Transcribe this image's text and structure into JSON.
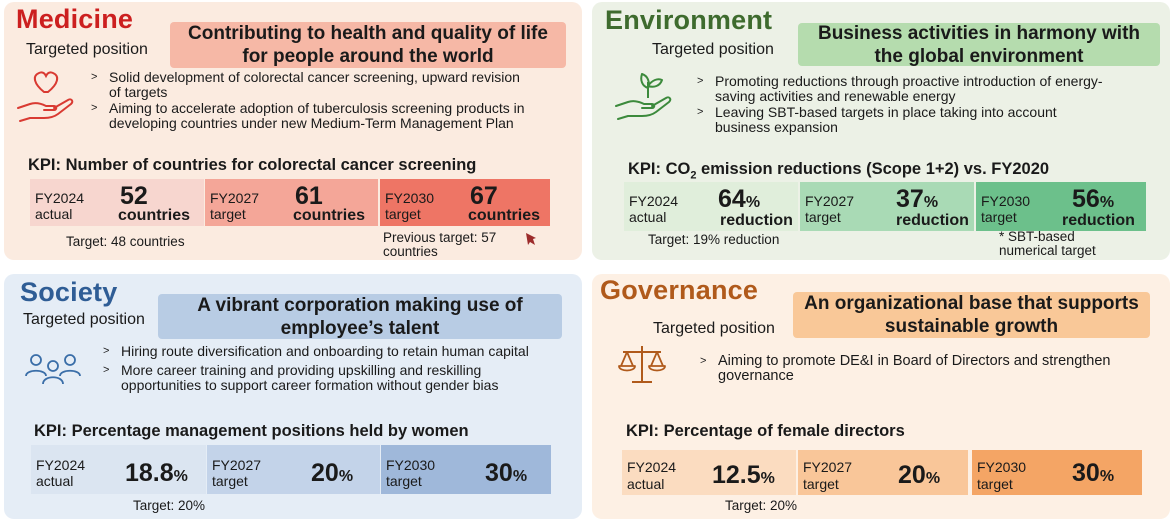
{
  "medicine": {
    "title": "Medicine",
    "targeted_position": "Targeted position",
    "banner": "Contributing to health and quality of life for people around the world",
    "bullets": [
      "Solid development of colorectal cancer screening, upward revision of targets",
      "Aiming to accelerate adoption of tuberculosis screening products in developing countries under new Medium-Term Management Plan"
    ],
    "kpi": "KPI: Number of countries for colorectal cancer screening",
    "boxes": [
      {
        "year": "FY2024",
        "label": "actual",
        "value": "52",
        "unit": "countries"
      },
      {
        "year": "FY2027",
        "label": "target",
        "value": "61",
        "unit": "countries"
      },
      {
        "year": "FY2030",
        "label": "target",
        "value": "67",
        "unit": "countries"
      }
    ],
    "note_target": "Target: 48 countries",
    "note_previous": "Previous target: 57 countries",
    "colors": {
      "title": "#cc1f1f",
      "banner": "#f6b8a6",
      "box1": "#f7d6cf",
      "box2": "#f4a698",
      "box3": "#ee7565"
    }
  },
  "environment": {
    "title": "Environment",
    "targeted_position": "Targeted position",
    "banner": "Business activities in harmony with the global environment",
    "bullets": [
      "Promoting reductions through proactive introduction of energy-saving activities and renewable energy",
      "Leaving SBT-based targets in place taking into account business expansion"
    ],
    "kpi_prefix": "KPI: CO",
    "kpi_sub": "2",
    "kpi_suffix": " emission reductions (Scope 1+2) vs. FY2020",
    "boxes": [
      {
        "year": "FY2024",
        "label": "actual",
        "value": "64",
        "pct": "%",
        "unit": "reduction"
      },
      {
        "year": "FY2027",
        "label": "target",
        "value": "37",
        "pct": "%",
        "unit": "reduction"
      },
      {
        "year": "FY2030",
        "label": "target",
        "value": "56",
        "pct": "%",
        "unit": "reduction"
      }
    ],
    "note_target": "Target: 19% reduction",
    "note_sbt": "* SBT-based numerical target",
    "colors": {
      "title": "#3e6b2e",
      "banner": "#b5dcae",
      "box1": "#e0eedb",
      "box2": "#a9dab5",
      "box3": "#6cc08b"
    }
  },
  "society": {
    "title": "Society",
    "targeted_position": "Targeted position",
    "banner": "A vibrant corporation making use of employee’s talent",
    "bullets": [
      "Hiring route diversification and onboarding to retain human capital",
      "More career training and providing upskilling and reskilling opportunities to support career formation without gender bias"
    ],
    "kpi": "KPI: Percentage management positions held by women",
    "boxes": [
      {
        "year": "FY2024",
        "label": "actual",
        "value": "18.8",
        "pct": "%"
      },
      {
        "year": "FY2027",
        "label": "target",
        "value": "20",
        "pct": "%"
      },
      {
        "year": "FY2030",
        "label": "target",
        "value": "30",
        "pct": "%"
      }
    ],
    "note_target": "Target: 20%",
    "colors": {
      "title": "#2f5d95",
      "banner": "#b8cce4",
      "box1": "#dbe5f1",
      "box2": "#c3d3e9",
      "box3": "#9fb8da"
    }
  },
  "governance": {
    "title": "Governance",
    "targeted_position": "Targeted position",
    "banner": "An organizational base that supports sustainable growth",
    "bullets": [
      "Aiming to promote DE&I in Board of Directors and strengthen governance"
    ],
    "kpi": "KPI: Percentage of female directors",
    "boxes": [
      {
        "year": "FY2024",
        "label": "actual",
        "value": "12.5",
        "pct": "%"
      },
      {
        "year": "FY2027",
        "label": "target",
        "value": "20",
        "pct": "%"
      },
      {
        "year": "FY2030",
        "label": "target",
        "value": "30",
        "pct": "%"
      }
    ],
    "note_target": "Target: 20%",
    "colors": {
      "title": "#b05a1b",
      "banner": "#f9c898",
      "box1": "#fbdcc0",
      "box2": "#f9c699",
      "box3": "#f4a565"
    }
  },
  "icons": {
    "medicine": "heart-hand-icon",
    "environment": "sprout-hand-icon",
    "society": "people-group-icon",
    "governance": "scales-icon",
    "previous_target": "down-arrow-icon"
  }
}
